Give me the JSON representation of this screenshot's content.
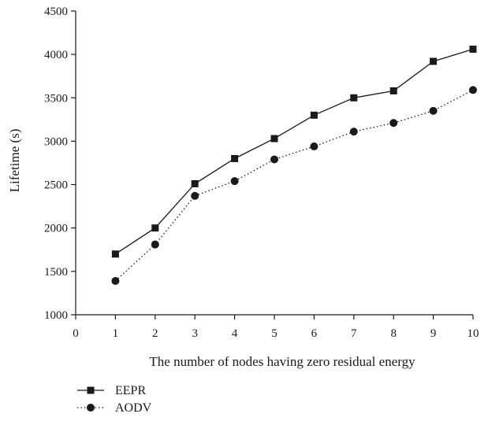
{
  "chart_data": {
    "type": "line",
    "title": "",
    "xlabel": "The number of nodes having zero residual energy",
    "ylabel": "Lifetime (s)",
    "xlim": [
      0,
      10
    ],
    "ylim": [
      1000,
      4500
    ],
    "x_ticks": [
      0,
      1,
      2,
      3,
      4,
      5,
      6,
      7,
      8,
      9,
      10
    ],
    "y_ticks": [
      1000,
      1500,
      2000,
      2500,
      3000,
      3500,
      4000,
      4500
    ],
    "x": [
      1,
      2,
      3,
      4,
      5,
      6,
      7,
      8,
      9,
      10
    ],
    "grid": false,
    "legend_position": "bottom-left",
    "series": [
      {
        "name": "EEPR",
        "values": [
          1700,
          2000,
          2510,
          2800,
          3030,
          3300,
          3500,
          3580,
          3920,
          4060
        ],
        "marker": "square",
        "line_style": "solid",
        "color": "#1a1a1a"
      },
      {
        "name": "AODV",
        "values": [
          1390,
          1810,
          2370,
          2540,
          2790,
          2940,
          3110,
          3210,
          3350,
          3590
        ],
        "marker": "circle",
        "line_style": "dotted",
        "color": "#1a1a1a"
      }
    ]
  }
}
